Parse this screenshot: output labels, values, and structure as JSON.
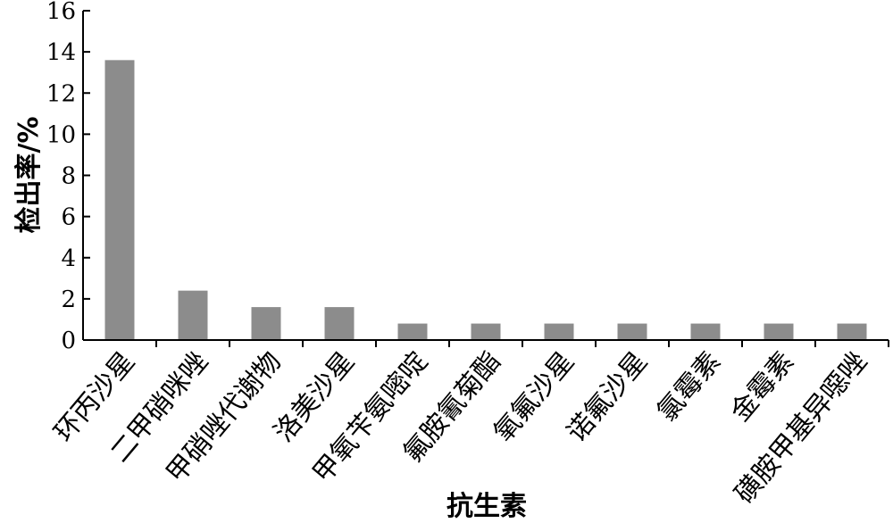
{
  "chart_data": {
    "type": "bar",
    "categories": [
      "环丙沙星",
      "二甲硝咪唑",
      "甲硝唑代谢物",
      "洛美沙星",
      "甲氧苄氨嘧啶",
      "氟胺氰菊酯",
      "氧氟沙星",
      "诺氟沙星",
      "氯霉素",
      "金霉素",
      "磺胺甲基异噁唑"
    ],
    "values": [
      13.6,
      2.4,
      1.6,
      1.6,
      0.8,
      0.8,
      0.8,
      0.8,
      0.8,
      0.8,
      0.8
    ],
    "xlabel": "抗生素",
    "ylabel": "检出率/%",
    "ylim": [
      0,
      16
    ],
    "yticks": [
      0,
      2,
      4,
      6,
      8,
      10,
      12,
      14,
      16
    ],
    "bar_color": "#8c8c8c",
    "grid": false,
    "legend": "none"
  }
}
